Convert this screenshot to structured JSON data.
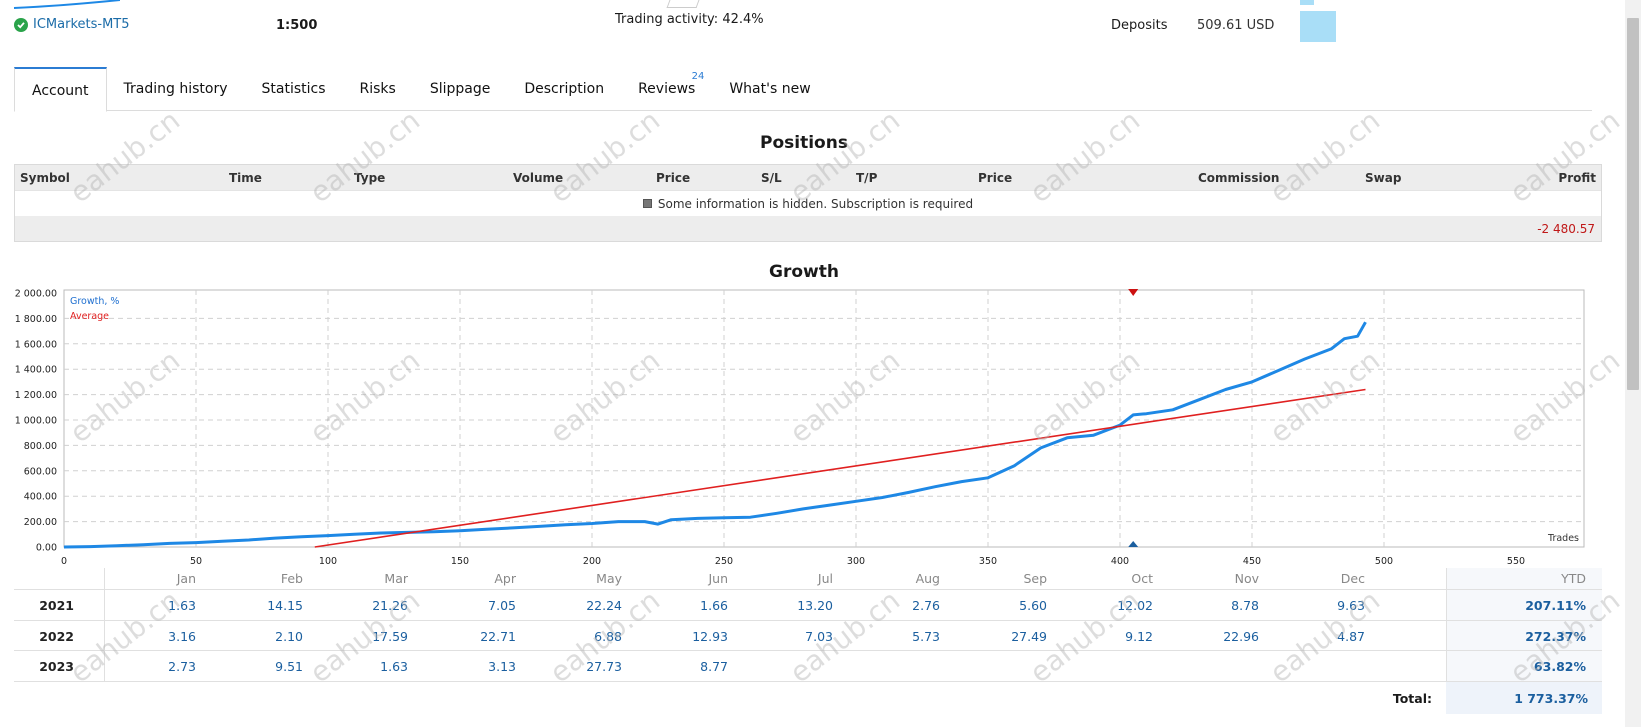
{
  "header": {
    "broker": "ICMarkets-MT5",
    "leverage": "1:500",
    "trading_activity": "Trading activity: 42.4%",
    "deposits_label": "Deposits",
    "deposits_value": "509.61 USD"
  },
  "tabs": [
    {
      "label": "Account",
      "active": true
    },
    {
      "label": "Trading history"
    },
    {
      "label": "Statistics"
    },
    {
      "label": "Risks"
    },
    {
      "label": "Slippage"
    },
    {
      "label": "Description"
    },
    {
      "label": "Reviews",
      "badge": "24"
    },
    {
      "label": "What's new"
    }
  ],
  "positions": {
    "title": "Positions",
    "columns": [
      "Symbol",
      "Time",
      "Type",
      "Volume",
      "Price",
      "S/L",
      "T/P",
      "Price",
      "Commission",
      "Swap",
      "Profit"
    ],
    "hidden_message": "Some information is hidden. Subscription is required",
    "total_profit": "-2 480.57"
  },
  "growth": {
    "title": "Growth",
    "legend_growth": "Growth, %",
    "legend_average": "Average",
    "x_axis_label": "Trades"
  },
  "chart_data": {
    "type": "line",
    "title": "Growth",
    "xlabel": "Trades",
    "ylabel": "",
    "xlim": [
      0,
      550
    ],
    "ylim": [
      0,
      2000
    ],
    "x_ticks": [
      0,
      50,
      100,
      150,
      200,
      250,
      300,
      350,
      400,
      450,
      500,
      550
    ],
    "y_ticks": [
      "0.00",
      "200.00",
      "400.00",
      "600.00",
      "800.00",
      "1 000.00",
      "1 200.00",
      "1 400.00",
      "1 600.00",
      "1 800.00",
      "2 000.00"
    ],
    "grid": true,
    "legend": "top-left",
    "colors": {
      "growth": "#1e88e5",
      "average": "#e02020",
      "marker_top": "#cc1111",
      "marker_bottom": "#1b5f9f"
    },
    "series": [
      {
        "name": "Growth, %",
        "x": [
          0,
          10,
          20,
          30,
          40,
          50,
          60,
          70,
          80,
          90,
          100,
          110,
          120,
          130,
          140,
          150,
          160,
          170,
          180,
          190,
          200,
          210,
          220,
          225,
          230,
          240,
          250,
          260,
          270,
          280,
          290,
          300,
          310,
          320,
          330,
          340,
          350,
          360,
          370,
          380,
          390,
          400,
          405,
          410,
          420,
          430,
          440,
          450,
          460,
          470,
          480,
          485,
          490,
          493
        ],
        "values": [
          0,
          3,
          10,
          18,
          28,
          35,
          45,
          55,
          70,
          80,
          90,
          100,
          110,
          115,
          120,
          128,
          140,
          150,
          162,
          175,
          185,
          200,
          200,
          180,
          215,
          225,
          230,
          235,
          265,
          300,
          330,
          360,
          390,
          430,
          475,
          515,
          545,
          640,
          780,
          860,
          880,
          960,
          1040,
          1050,
          1080,
          1160,
          1240,
          1300,
          1390,
          1480,
          1560,
          1640,
          1660,
          1770
        ]
      },
      {
        "name": "Average",
        "x": [
          95,
          493
        ],
        "values": [
          0,
          1240
        ]
      }
    ],
    "markers": [
      {
        "x": 405,
        "position": "top"
      },
      {
        "x": 405,
        "position": "bottom"
      }
    ]
  },
  "monthly": {
    "months": [
      "Jan",
      "Feb",
      "Mar",
      "Apr",
      "May",
      "Jun",
      "Jul",
      "Aug",
      "Sep",
      "Oct",
      "Nov",
      "Dec"
    ],
    "ytd_label": "YTD",
    "rows": [
      {
        "year": "2021",
        "values": [
          "1.63",
          "14.15",
          "21.26",
          "7.05",
          "22.24",
          "1.66",
          "13.20",
          "2.76",
          "5.60",
          "12.02",
          "8.78",
          "9.63"
        ],
        "ytd": "207.11%"
      },
      {
        "year": "2022",
        "values": [
          "3.16",
          "2.10",
          "17.59",
          "22.71",
          "6.88",
          "12.93",
          "7.03",
          "5.73",
          "27.49",
          "9.12",
          "22.96",
          "4.87"
        ],
        "ytd": "272.37%"
      },
      {
        "year": "2023",
        "values": [
          "2.73",
          "9.51",
          "1.63",
          "3.13",
          "27.73",
          "8.77",
          "",
          "",
          "",
          "",
          "",
          ""
        ],
        "ytd": "63.82%"
      }
    ],
    "total_label": "Total:",
    "total_value": "1 773.37%"
  },
  "watermark": "eahub.cn"
}
